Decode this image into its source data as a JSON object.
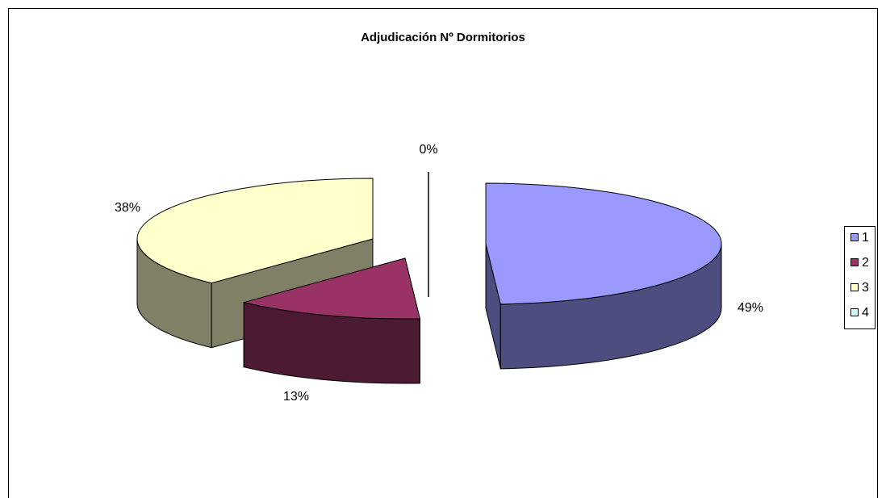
{
  "chart_data": {
    "type": "pie3d",
    "title": "Adjudicación Nº Dormitorios",
    "categories": [
      "1",
      "2",
      "3",
      "4"
    ],
    "values": [
      49,
      13,
      38,
      0
    ],
    "value_labels": [
      "49%",
      "13%",
      "38%",
      "0%"
    ],
    "colors": [
      "#9999ff",
      "#993366",
      "#ffffcc",
      "#ccffff"
    ],
    "legend": "right"
  }
}
